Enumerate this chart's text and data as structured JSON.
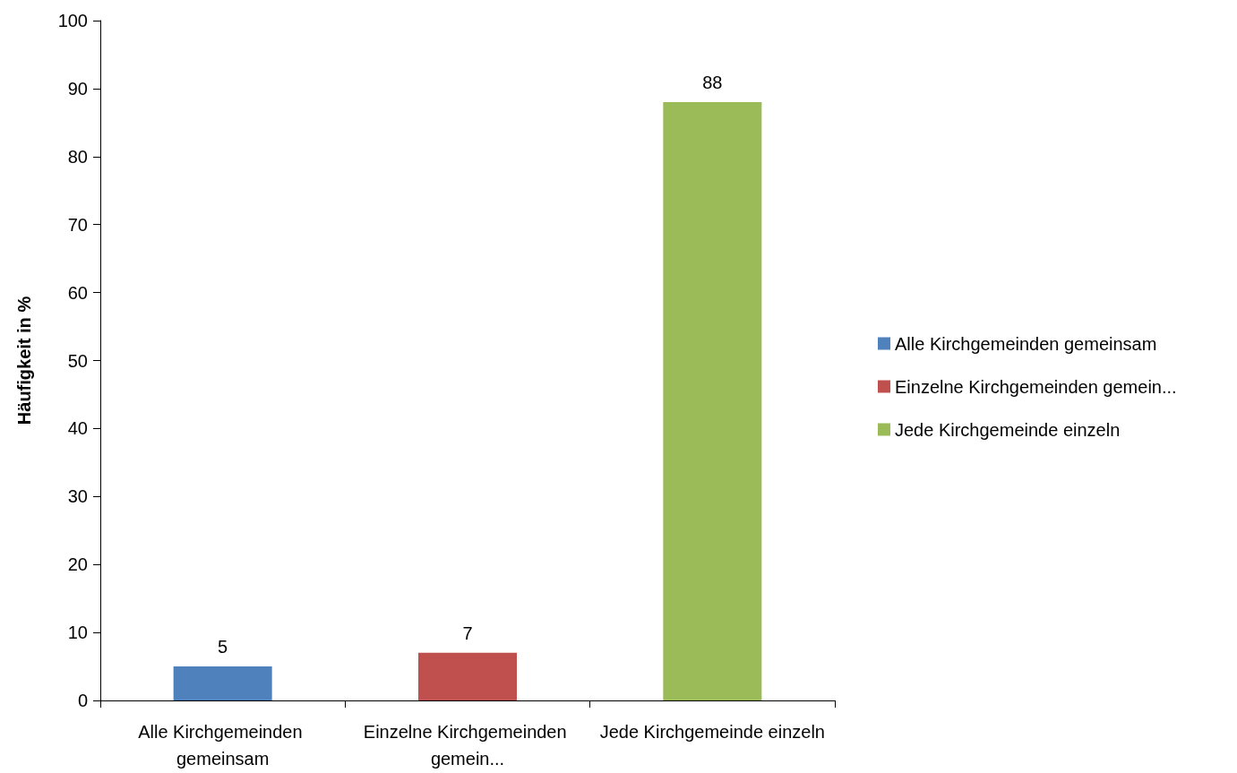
{
  "chart_data": {
    "type": "bar",
    "ylabel": "Häufigkeit in %",
    "categories": [
      "Alle Kirchgemeinden gemeinsam",
      "Einzelne Kirchgemeinden gemein...",
      "Jede Kirchgemeinde einzeln"
    ],
    "series": [
      {
        "name": "Alle Kirchgemeinden gemeinsam",
        "color": "#4f81bd",
        "values": [
          5,
          null,
          null
        ]
      },
      {
        "name": "Einzelne Kirchgemeinden gemein...",
        "color": "#c0504d",
        "values": [
          null,
          7,
          null
        ]
      },
      {
        "name": "Jede Kirchgemeinde einzeln",
        "color": "#9bbb59",
        "values": [
          null,
          null,
          88
        ]
      }
    ],
    "ylim": [
      0,
      100
    ],
    "yticks": [
      0,
      10,
      20,
      30,
      40,
      50,
      60,
      70,
      80,
      90,
      100
    ],
    "data_labels": true,
    "grid": false,
    "legend": "right"
  }
}
